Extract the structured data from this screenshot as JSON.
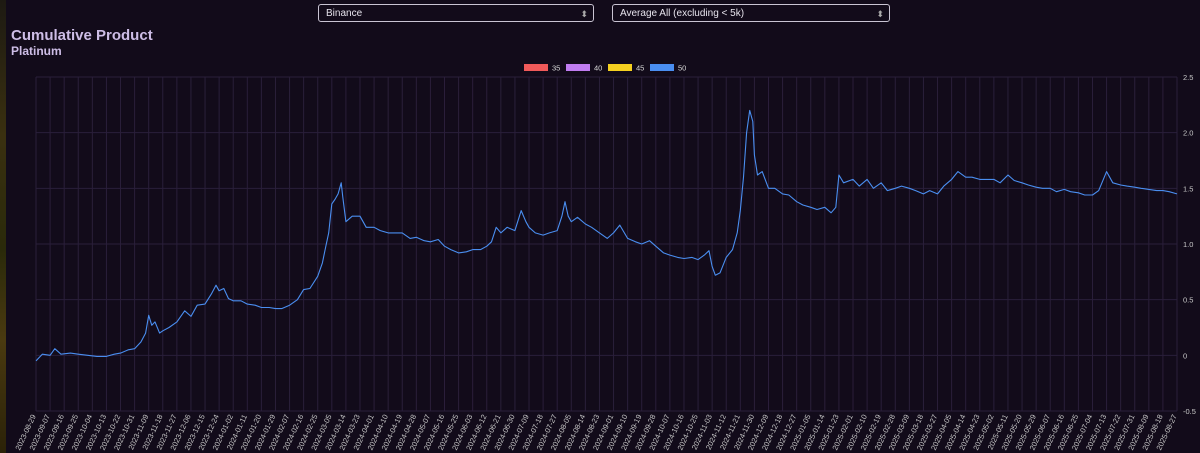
{
  "selects": {
    "exchange": {
      "value": "Binance"
    },
    "average": {
      "value": "Average All (excluding < 5k)"
    }
  },
  "header": {
    "title": "Cumulative Product",
    "subtitle": "Platinum"
  },
  "colors": {
    "bg": "#120b1a",
    "grid": "#2a1f3a",
    "axis_text": "#c8c8c8",
    "line": "#4a8ef0"
  },
  "chart_data": {
    "type": "line",
    "legend": [
      {
        "name": "35",
        "color": "#f05a5a"
      },
      {
        "name": "40",
        "color": "#c07cf0"
      },
      {
        "name": "45",
        "color": "#f5d020"
      },
      {
        "name": "50",
        "color": "#4a8ef0"
      }
    ],
    "legend_position": "top-center",
    "y_axis_position": "right",
    "ylim": [
      -0.5,
      2.5
    ],
    "yticks": [
      -0.5,
      0,
      0.5,
      1.0,
      1.5,
      2.0,
      2.5
    ],
    "ytick_labels": [
      "-0.5",
      "0",
      "0.5",
      "1.0",
      "1.5",
      "2.0",
      "2.5"
    ],
    "grid": true,
    "x_tick_labels": [
      "2023-08-29",
      "2023-09-07",
      "2023-09-16",
      "2023-09-25",
      "2023-10-04",
      "2023-10-13",
      "2023-10-22",
      "2023-10-31",
      "2023-11-09",
      "2023-11-18",
      "2023-11-27",
      "2023-12-06",
      "2023-12-15",
      "2023-12-24",
      "2024-01-02",
      "2024-01-11",
      "2024-01-20",
      "2024-01-29",
      "2024-02-07",
      "2024-02-16",
      "2024-02-25",
      "2024-03-05",
      "2024-03-14",
      "2024-03-23",
      "2024-04-01",
      "2024-04-10",
      "2024-04-19",
      "2024-04-28",
      "2024-05-07",
      "2024-05-16",
      "2024-05-25",
      "2024-06-03",
      "2024-06-12",
      "2024-06-21",
      "2024-06-30",
      "2024-07-09",
      "2024-07-18",
      "2024-07-27",
      "2024-08-05",
      "2024-08-14",
      "2024-08-23",
      "2024-09-01",
      "2024-09-10",
      "2024-09-19",
      "2024-09-28",
      "2024-10-07",
      "2024-10-16",
      "2024-10-25",
      "2024-11-03",
      "2024-11-12",
      "2024-11-21",
      "2024-11-30",
      "2024-12-09",
      "2024-12-18",
      "2024-12-27",
      "2025-01-05",
      "2025-01-14",
      "2025-01-23",
      "2025-02-01",
      "2025-02-10",
      "2025-02-19",
      "2025-02-28",
      "2025-03-09",
      "2025-03-18",
      "2025-03-27",
      "2025-04-05",
      "2025-04-14",
      "2025-04-23",
      "2025-05-02",
      "2025-05-11",
      "2025-05-20",
      "2025-05-29",
      "2025-06-07",
      "2025-06-16",
      "2025-06-25",
      "2025-07-04",
      "2025-07-13",
      "2025-07-22",
      "2025-07-31",
      "2025-08-09",
      "2025-08-18",
      "2025-08-27"
    ],
    "series": [
      {
        "name": "50",
        "color": "#4a8ef0",
        "points": [
          [
            "2023-08-29",
            -0.05
          ],
          [
            "2023-09-02",
            0.01
          ],
          [
            "2023-09-07",
            0.0
          ],
          [
            "2023-09-10",
            0.06
          ],
          [
            "2023-09-14",
            0.01
          ],
          [
            "2023-09-20",
            0.02
          ],
          [
            "2023-09-25",
            0.01
          ],
          [
            "2023-10-01",
            0.0
          ],
          [
            "2023-10-07",
            -0.01
          ],
          [
            "2023-10-13",
            -0.01
          ],
          [
            "2023-10-18",
            0.01
          ],
          [
            "2023-10-22",
            0.02
          ],
          [
            "2023-10-27",
            0.05
          ],
          [
            "2023-10-31",
            0.06
          ],
          [
            "2023-11-04",
            0.12
          ],
          [
            "2023-11-07",
            0.2
          ],
          [
            "2023-11-09",
            0.36
          ],
          [
            "2023-11-11",
            0.27
          ],
          [
            "2023-11-13",
            0.3
          ],
          [
            "2023-11-16",
            0.2
          ],
          [
            "2023-11-18",
            0.22
          ],
          [
            "2023-11-22",
            0.25
          ],
          [
            "2023-11-27",
            0.3
          ],
          [
            "2023-12-02",
            0.4
          ],
          [
            "2023-12-06",
            0.35
          ],
          [
            "2023-12-10",
            0.45
          ],
          [
            "2023-12-15",
            0.46
          ],
          [
            "2023-12-19",
            0.55
          ],
          [
            "2023-12-22",
            0.63
          ],
          [
            "2023-12-24",
            0.58
          ],
          [
            "2023-12-27",
            0.6
          ],
          [
            "2023-12-30",
            0.51
          ],
          [
            "2024-01-02",
            0.49
          ],
          [
            "2024-01-07",
            0.49
          ],
          [
            "2024-01-11",
            0.46
          ],
          [
            "2024-01-16",
            0.45
          ],
          [
            "2024-01-20",
            0.43
          ],
          [
            "2024-01-25",
            0.43
          ],
          [
            "2024-01-29",
            0.42
          ],
          [
            "2024-02-02",
            0.42
          ],
          [
            "2024-02-07",
            0.45
          ],
          [
            "2024-02-12",
            0.5
          ],
          [
            "2024-02-16",
            0.59
          ],
          [
            "2024-02-20",
            0.6
          ],
          [
            "2024-02-25",
            0.71
          ],
          [
            "2024-02-28",
            0.83
          ],
          [
            "2024-03-01",
            0.97
          ],
          [
            "2024-03-03",
            1.1
          ],
          [
            "2024-03-05",
            1.36
          ],
          [
            "2024-03-07",
            1.4
          ],
          [
            "2024-03-09",
            1.45
          ],
          [
            "2024-03-11",
            1.55
          ],
          [
            "2024-03-12",
            1.42
          ],
          [
            "2024-03-14",
            1.2
          ],
          [
            "2024-03-18",
            1.25
          ],
          [
            "2024-03-23",
            1.25
          ],
          [
            "2024-03-27",
            1.15
          ],
          [
            "2024-04-01",
            1.15
          ],
          [
            "2024-04-05",
            1.12
          ],
          [
            "2024-04-10",
            1.1
          ],
          [
            "2024-04-15",
            1.1
          ],
          [
            "2024-04-19",
            1.1
          ],
          [
            "2024-04-24",
            1.05
          ],
          [
            "2024-04-28",
            1.06
          ],
          [
            "2024-05-03",
            1.03
          ],
          [
            "2024-05-07",
            1.02
          ],
          [
            "2024-05-12",
            1.04
          ],
          [
            "2024-05-16",
            0.98
          ],
          [
            "2024-05-20",
            0.95
          ],
          [
            "2024-05-25",
            0.92
          ],
          [
            "2024-05-30",
            0.93
          ],
          [
            "2024-06-03",
            0.95
          ],
          [
            "2024-06-08",
            0.95
          ],
          [
            "2024-06-12",
            0.98
          ],
          [
            "2024-06-15",
            1.02
          ],
          [
            "2024-06-18",
            1.15
          ],
          [
            "2024-06-21",
            1.1
          ],
          [
            "2024-06-25",
            1.15
          ],
          [
            "2024-06-30",
            1.12
          ],
          [
            "2024-07-04",
            1.3
          ],
          [
            "2024-07-07",
            1.2
          ],
          [
            "2024-07-09",
            1.15
          ],
          [
            "2024-07-13",
            1.1
          ],
          [
            "2024-07-18",
            1.08
          ],
          [
            "2024-07-22",
            1.1
          ],
          [
            "2024-07-27",
            1.12
          ],
          [
            "2024-07-30",
            1.25
          ],
          [
            "2024-08-01",
            1.38
          ],
          [
            "2024-08-03",
            1.25
          ],
          [
            "2024-08-05",
            1.2
          ],
          [
            "2024-08-09",
            1.24
          ],
          [
            "2024-08-14",
            1.18
          ],
          [
            "2024-08-18",
            1.15
          ],
          [
            "2024-08-23",
            1.1
          ],
          [
            "2024-08-28",
            1.05
          ],
          [
            "2024-09-01",
            1.1
          ],
          [
            "2024-09-05",
            1.17
          ],
          [
            "2024-09-10",
            1.05
          ],
          [
            "2024-09-15",
            1.02
          ],
          [
            "2024-09-19",
            1.0
          ],
          [
            "2024-09-24",
            1.03
          ],
          [
            "2024-09-28",
            0.98
          ],
          [
            "2024-10-03",
            0.92
          ],
          [
            "2024-10-07",
            0.9
          ],
          [
            "2024-10-12",
            0.88
          ],
          [
            "2024-10-16",
            0.87
          ],
          [
            "2024-10-21",
            0.88
          ],
          [
            "2024-10-25",
            0.86
          ],
          [
            "2024-10-29",
            0.9
          ],
          [
            "2024-11-01",
            0.94
          ],
          [
            "2024-11-03",
            0.8
          ],
          [
            "2024-11-05",
            0.72
          ],
          [
            "2024-11-08",
            0.74
          ],
          [
            "2024-11-12",
            0.88
          ],
          [
            "2024-11-16",
            0.95
          ],
          [
            "2024-11-19",
            1.1
          ],
          [
            "2024-11-21",
            1.3
          ],
          [
            "2024-11-23",
            1.6
          ],
          [
            "2024-11-25",
            2.0
          ],
          [
            "2024-11-27",
            2.2
          ],
          [
            "2024-11-29",
            2.1
          ],
          [
            "2024-11-30",
            1.8
          ],
          [
            "2024-12-02",
            1.62
          ],
          [
            "2024-12-05",
            1.65
          ],
          [
            "2024-12-09",
            1.5
          ],
          [
            "2024-12-13",
            1.5
          ],
          [
            "2024-12-18",
            1.45
          ],
          [
            "2024-12-22",
            1.44
          ],
          [
            "2024-12-27",
            1.38
          ],
          [
            "2024-12-31",
            1.35
          ],
          [
            "2025-01-05",
            1.33
          ],
          [
            "2025-01-09",
            1.31
          ],
          [
            "2025-01-14",
            1.33
          ],
          [
            "2025-01-18",
            1.28
          ],
          [
            "2025-01-21",
            1.33
          ],
          [
            "2025-01-23",
            1.62
          ],
          [
            "2025-01-26",
            1.55
          ],
          [
            "2025-02-01",
            1.58
          ],
          [
            "2025-02-05",
            1.52
          ],
          [
            "2025-02-10",
            1.58
          ],
          [
            "2025-02-14",
            1.5
          ],
          [
            "2025-02-19",
            1.55
          ],
          [
            "2025-02-23",
            1.48
          ],
          [
            "2025-02-28",
            1.5
          ],
          [
            "2025-03-04",
            1.52
          ],
          [
            "2025-03-09",
            1.5
          ],
          [
            "2025-03-13",
            1.48
          ],
          [
            "2025-03-18",
            1.45
          ],
          [
            "2025-03-22",
            1.48
          ],
          [
            "2025-03-27",
            1.45
          ],
          [
            "2025-03-31",
            1.52
          ],
          [
            "2025-04-05",
            1.58
          ],
          [
            "2025-04-09",
            1.65
          ],
          [
            "2025-04-14",
            1.6
          ],
          [
            "2025-04-18",
            1.6
          ],
          [
            "2025-04-23",
            1.58
          ],
          [
            "2025-04-28",
            1.58
          ],
          [
            "2025-05-02",
            1.58
          ],
          [
            "2025-05-06",
            1.55
          ],
          [
            "2025-05-11",
            1.62
          ],
          [
            "2025-05-15",
            1.57
          ],
          [
            "2025-05-20",
            1.55
          ],
          [
            "2025-05-24",
            1.53
          ],
          [
            "2025-05-29",
            1.51
          ],
          [
            "2025-06-02",
            1.5
          ],
          [
            "2025-06-07",
            1.5
          ],
          [
            "2025-06-11",
            1.47
          ],
          [
            "2025-06-16",
            1.49
          ],
          [
            "2025-06-20",
            1.47
          ],
          [
            "2025-06-25",
            1.46
          ],
          [
            "2025-06-29",
            1.44
          ],
          [
            "2025-07-04",
            1.44
          ],
          [
            "2025-07-08",
            1.48
          ],
          [
            "2025-07-13",
            1.65
          ],
          [
            "2025-07-17",
            1.55
          ],
          [
            "2025-07-22",
            1.53
          ],
          [
            "2025-07-26",
            1.52
          ],
          [
            "2025-07-31",
            1.51
          ],
          [
            "2025-08-04",
            1.5
          ],
          [
            "2025-08-09",
            1.49
          ],
          [
            "2025-08-14",
            1.48
          ],
          [
            "2025-08-18",
            1.48
          ],
          [
            "2025-08-22",
            1.47
          ],
          [
            "2025-08-27",
            1.45
          ]
        ]
      }
    ]
  }
}
